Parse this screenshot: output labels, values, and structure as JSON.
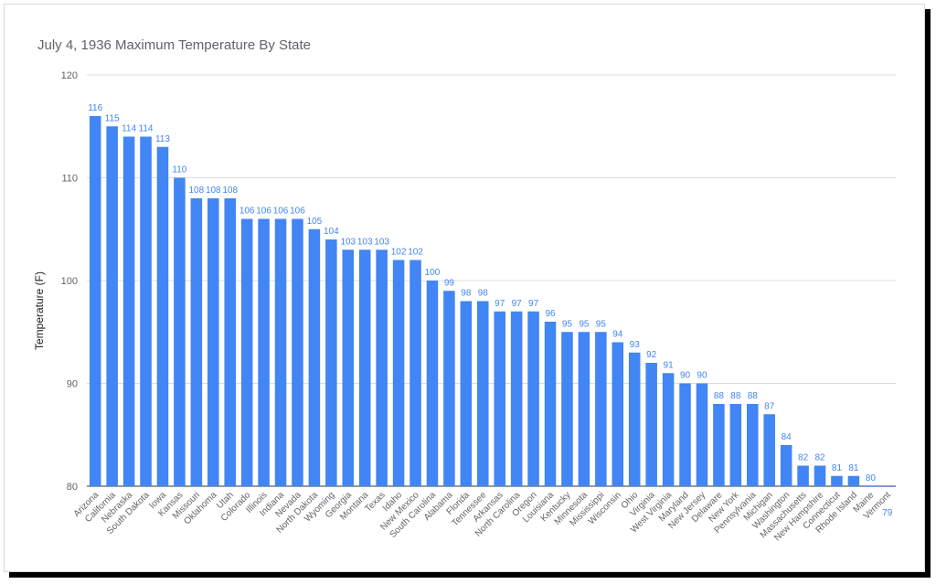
{
  "chart_data": {
    "type": "bar",
    "title": "July 4, 1936 Maximum Temperature By State",
    "xlabel": "",
    "ylabel": "Temperature (F)",
    "ylim": [
      80,
      120
    ],
    "yticks": [
      80,
      90,
      100,
      110,
      120
    ],
    "grid": true,
    "color": "#4285f4",
    "categories": [
      "Arizona",
      "California",
      "Nebraska",
      "South Dakota",
      "Iowa",
      "Kansas",
      "Missouri",
      "Oklahoma",
      "Utah",
      "Colorado",
      "Illinois",
      "Indiana",
      "Nevada",
      "North Dakota",
      "Wyoming",
      "Georgia",
      "Montana",
      "Texas",
      "Idaho",
      "New Mexico",
      "South Carolina",
      "Alabama",
      "Florida",
      "Tennessee",
      "Arkansas",
      "North Carolina",
      "Oregon",
      "Louisiana",
      "Kentucky",
      "Minnesota",
      "Mississippi",
      "Wisconsin",
      "Ohio",
      "Virginia",
      "West Virginia",
      "Maryland",
      "New Jersey",
      "Delaware",
      "New York",
      "Pennsylvania",
      "Michigan",
      "Washington",
      "Massachusetts",
      "New Hampshire",
      "Connecticut",
      "Rhode Island",
      "Maine",
      "Vermont"
    ],
    "values": [
      116,
      115,
      114,
      114,
      113,
      110,
      108,
      108,
      108,
      106,
      106,
      106,
      106,
      105,
      104,
      103,
      103,
      103,
      102,
      102,
      100,
      99,
      98,
      98,
      97,
      97,
      97,
      96,
      95,
      95,
      95,
      94,
      93,
      92,
      91,
      90,
      90,
      88,
      88,
      88,
      87,
      84,
      82,
      82,
      81,
      81,
      80,
      79
    ]
  }
}
